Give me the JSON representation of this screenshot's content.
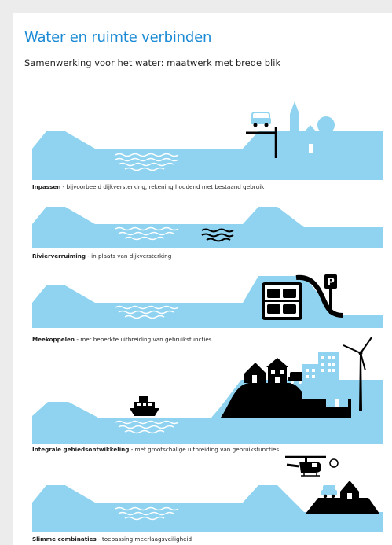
{
  "header": {
    "title": "Water en ruimte verbinden",
    "subtitle": "Samenwerking voor het water: maatwerk met brede blik"
  },
  "colors": {
    "water": "#8fd3f0",
    "title": "#1a8ad4",
    "ink": "#000000"
  },
  "panels": [
    {
      "icons": [
        "car-icon",
        "church-icon",
        "house-icon",
        "tree-icon"
      ],
      "title": "Inpassen",
      "desc": " - bijvoorbeeld dijkversterking, rekening houdend met bestaand gebruik"
    },
    {
      "icons": [
        "water-waves-icon"
      ],
      "title": "Rivierverruiming",
      "desc": " - in plaats van dijkversterking"
    },
    {
      "icons": [
        "parking-garage-icon",
        "parking-sign-icon"
      ],
      "title": "Meekoppelen",
      "desc": " - met beperkte uitbreiding van gebruiksfuncties"
    },
    {
      "icons": [
        "boat-icon",
        "house-icon",
        "apartment-icon",
        "car-icon",
        "office-building-icon",
        "wind-turbine-icon"
      ],
      "title": "Integrale gebiedsontwikkeling",
      "desc": " - met grootschalige uitbreiding van gebruiksfuncties"
    },
    {
      "icons": [
        "helicopter-icon",
        "car-icon",
        "house-icon"
      ],
      "title": "Slimme combinaties",
      "desc": " - toepassing meerlaagsveiligheid"
    }
  ]
}
